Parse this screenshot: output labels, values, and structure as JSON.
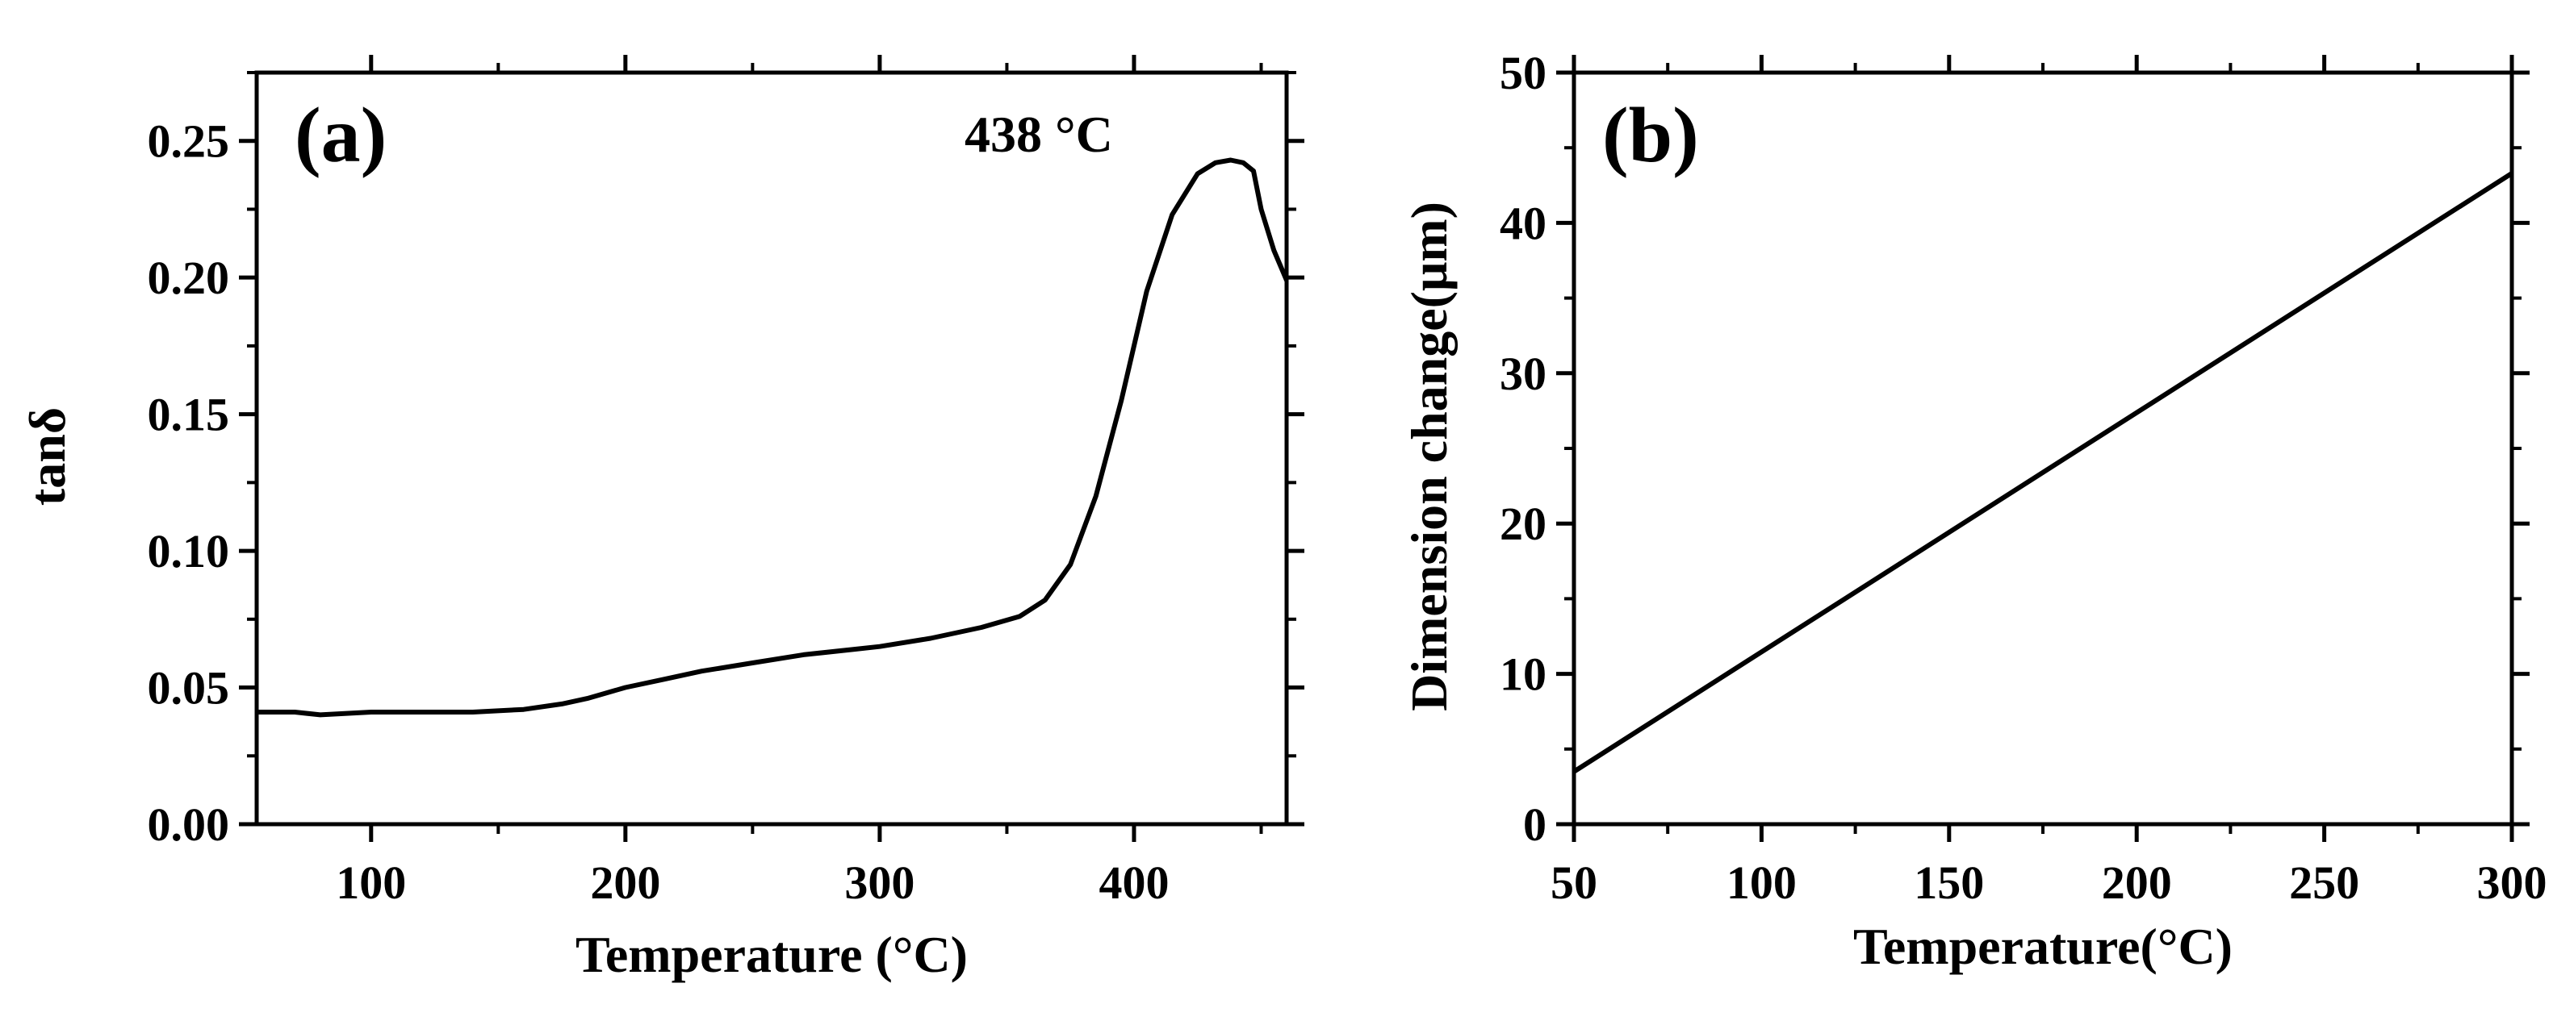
{
  "chart_data": [
    {
      "panel": "(a)",
      "type": "line",
      "xlabel": "Temperature (°C)",
      "ylabel": "tanδ",
      "xlim": [
        55,
        460
      ],
      "ylim": [
        0,
        0.275
      ],
      "xticks": [
        100,
        200,
        300,
        400
      ],
      "xtick_labels": [
        "100",
        "200",
        "300",
        "400"
      ],
      "yticks": [
        0,
        0.05,
        0.1,
        0.15,
        0.2,
        0.25
      ],
      "ytick_labels": [
        "0.00",
        "0.05",
        "0.10",
        "0.15",
        "0.20",
        "0.25"
      ],
      "annotation": "438 °C",
      "grid": false,
      "series": [
        {
          "name": "tanδ",
          "x": [
            55,
            70,
            80,
            100,
            120,
            140,
            160,
            175,
            185,
            200,
            215,
            230,
            250,
            270,
            290,
            300,
            320,
            340,
            355,
            365,
            375,
            385,
            395,
            405,
            415,
            425,
            432,
            438,
            443,
            447,
            450,
            455,
            460
          ],
          "y": [
            0.041,
            0.041,
            0.04,
            0.041,
            0.041,
            0.041,
            0.042,
            0.044,
            0.046,
            0.05,
            0.053,
            0.056,
            0.059,
            0.062,
            0.064,
            0.065,
            0.068,
            0.072,
            0.076,
            0.082,
            0.095,
            0.12,
            0.155,
            0.195,
            0.223,
            0.238,
            0.242,
            0.243,
            0.242,
            0.239,
            0.225,
            0.21,
            0.199
          ]
        }
      ]
    },
    {
      "panel": "(b)",
      "type": "line",
      "xlabel": "Temperature(°C)",
      "ylabel": "Dimension change(μm)",
      "xlim": [
        50,
        300
      ],
      "ylim": [
        0,
        50
      ],
      "xticks": [
        50,
        100,
        150,
        200,
        250,
        300
      ],
      "xtick_labels": [
        "50",
        "100",
        "150",
        "200",
        "250",
        "300"
      ],
      "yticks": [
        0,
        10,
        20,
        30,
        40,
        50
      ],
      "ytick_labels": [
        "0",
        "10",
        "20",
        "30",
        "40",
        "50"
      ],
      "grid": false,
      "series": [
        {
          "name": "Dimension change",
          "x": [
            50,
            300
          ],
          "y": [
            3.5,
            43.3
          ]
        }
      ]
    }
  ]
}
